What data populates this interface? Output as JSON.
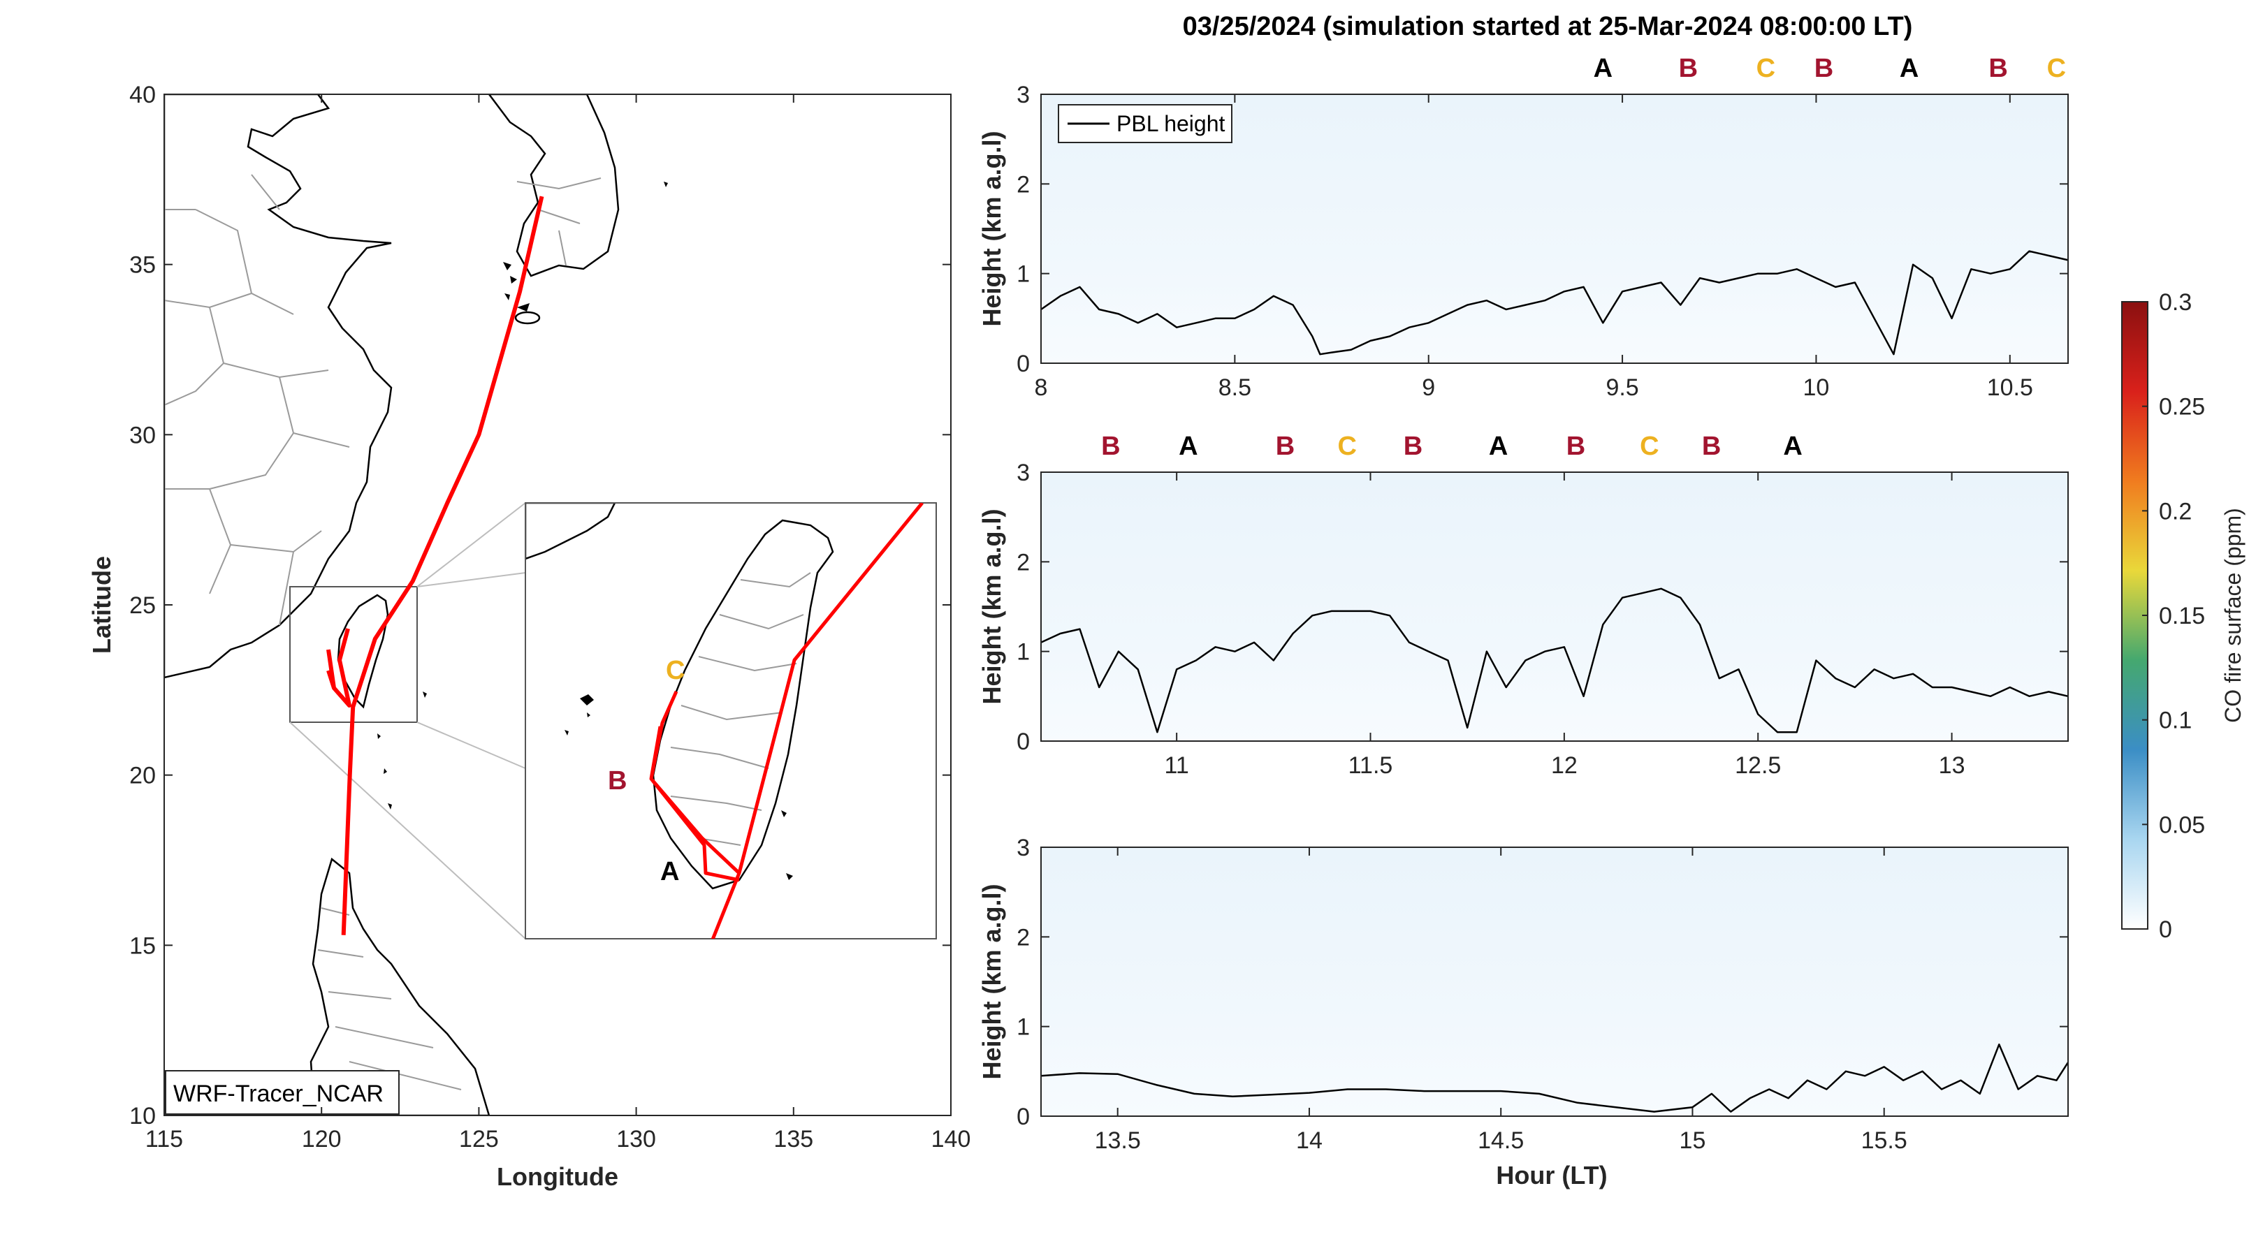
{
  "title": "03/25/2024 (simulation started at 25-Mar-2024 08:00:00 LT)",
  "colors": {
    "A": "#000000",
    "B": "#a2142f",
    "C": "#edb120",
    "track": "#ff0000",
    "pbl": "#000000"
  },
  "chart_data": [
    {
      "type": "map",
      "xlabel": "Longitude",
      "ylabel": "Latitude",
      "xlim": [
        115,
        140
      ],
      "ylim": [
        10,
        40
      ],
      "xticks": [
        "115",
        "120",
        "125",
        "130",
        "135",
        "140"
      ],
      "yticks": [
        "10",
        "15",
        "20",
        "25",
        "30",
        "35",
        "40"
      ],
      "model_label": "WRF-Tracer_NCAR",
      "flight_track": [
        [
          127.0,
          37.0
        ],
        [
          126.3,
          34.2
        ],
        [
          125.0,
          30.0
        ],
        [
          124.0,
          28.0
        ],
        [
          122.9,
          25.7
        ],
        [
          121.7,
          24.0
        ],
        [
          121.0,
          22.0
        ],
        [
          120.9,
          20.0
        ],
        [
          120.7,
          15.3
        ]
      ],
      "inset": {
        "lon": [
          119.0,
          122.5
        ],
        "lat": [
          21.5,
          25.6
        ],
        "waypoints": [
          {
            "label": "A",
            "lon": 120.6,
            "lat": 21.95
          },
          {
            "label": "B",
            "lon": 119.95,
            "lat": 23.1
          },
          {
            "label": "C",
            "lon": 120.3,
            "lat": 23.95
          }
        ]
      }
    },
    {
      "type": "heatmap",
      "ylabel": "Height (km a.g.l)",
      "xlim": [
        8.0,
        10.65
      ],
      "ylim": [
        0,
        3
      ],
      "xticks": [
        "8",
        "8.5",
        "9",
        "9.5",
        "10",
        "10.5"
      ],
      "yticks": [
        "0",
        "1",
        "2",
        "3"
      ],
      "legend": "PBL height",
      "markers": [
        {
          "label": "A",
          "x": 9.45
        },
        {
          "label": "B",
          "x": 9.67
        },
        {
          "label": "C",
          "x": 9.87
        },
        {
          "label": "B",
          "x": 10.02
        },
        {
          "label": "A",
          "x": 10.24
        },
        {
          "label": "B",
          "x": 10.47
        },
        {
          "label": "C",
          "x": 10.62
        }
      ],
      "pbl_x": [
        8.0,
        8.05,
        8.1,
        8.15,
        8.2,
        8.25,
        8.3,
        8.35,
        8.4,
        8.45,
        8.5,
        8.55,
        8.6,
        8.65,
        8.7,
        8.72,
        8.75,
        8.8,
        8.85,
        8.9,
        8.95,
        9.0,
        9.05,
        9.1,
        9.15,
        9.2,
        9.25,
        9.3,
        9.35,
        9.4,
        9.45,
        9.5,
        9.55,
        9.6,
        9.65,
        9.7,
        9.75,
        9.8,
        9.85,
        9.9,
        9.95,
        10.0,
        10.05,
        10.1,
        10.15,
        10.2,
        10.25,
        10.3,
        10.35,
        10.4,
        10.45,
        10.5,
        10.55,
        10.6,
        10.65
      ],
      "pbl_y": [
        0.6,
        0.75,
        0.85,
        0.6,
        0.55,
        0.45,
        0.55,
        0.4,
        0.45,
        0.5,
        0.5,
        0.6,
        0.75,
        0.65,
        0.3,
        0.1,
        0.12,
        0.15,
        0.25,
        0.3,
        0.4,
        0.45,
        0.55,
        0.65,
        0.7,
        0.6,
        0.65,
        0.7,
        0.8,
        0.85,
        0.45,
        0.8,
        0.85,
        0.9,
        0.65,
        0.95,
        0.9,
        0.95,
        1.0,
        1.0,
        1.05,
        0.95,
        0.85,
        0.9,
        0.5,
        0.1,
        1.1,
        0.95,
        0.5,
        1.05,
        1.0,
        1.05,
        1.25,
        1.2,
        1.15
      ]
    },
    {
      "type": "heatmap",
      "ylabel": "Height (km a.g.l)",
      "xlim": [
        10.65,
        13.3
      ],
      "ylim": [
        0,
        3
      ],
      "xticks": [
        "11",
        "11.5",
        "12",
        "12.5",
        "13"
      ],
      "yticks": [
        "0",
        "1",
        "2",
        "3"
      ],
      "markers": [
        {
          "label": "B",
          "x": 10.83
        },
        {
          "label": "A",
          "x": 11.03
        },
        {
          "label": "B",
          "x": 11.28
        },
        {
          "label": "C",
          "x": 11.44
        },
        {
          "label": "B",
          "x": 11.61
        },
        {
          "label": "A",
          "x": 11.83
        },
        {
          "label": "B",
          "x": 12.03
        },
        {
          "label": "C",
          "x": 12.22
        },
        {
          "label": "B",
          "x": 12.38
        },
        {
          "label": "A",
          "x": 12.59
        }
      ],
      "pbl_x": [
        10.65,
        10.7,
        10.75,
        10.8,
        10.85,
        10.9,
        10.95,
        11.0,
        11.05,
        11.1,
        11.15,
        11.2,
        11.25,
        11.3,
        11.35,
        11.4,
        11.45,
        11.5,
        11.55,
        11.6,
        11.65,
        11.7,
        11.75,
        11.8,
        11.85,
        11.9,
        11.95,
        12.0,
        12.05,
        12.1,
        12.15,
        12.2,
        12.25,
        12.3,
        12.35,
        12.4,
        12.45,
        12.5,
        12.55,
        12.6,
        12.65,
        12.7,
        12.75,
        12.8,
        12.85,
        12.9,
        12.95,
        13.0,
        13.05,
        13.1,
        13.15,
        13.2,
        13.25,
        13.3
      ],
      "pbl_y": [
        1.1,
        1.2,
        1.25,
        0.6,
        1.0,
        0.8,
        0.1,
        0.8,
        0.9,
        1.05,
        1.0,
        1.1,
        0.9,
        1.2,
        1.4,
        1.45,
        1.45,
        1.45,
        1.4,
        1.1,
        1.0,
        0.9,
        0.15,
        1.0,
        0.6,
        0.9,
        1.0,
        1.05,
        0.5,
        1.3,
        1.6,
        1.65,
        1.7,
        1.6,
        1.3,
        0.7,
        0.8,
        0.3,
        0.1,
        0.1,
        0.9,
        0.7,
        0.6,
        0.8,
        0.7,
        0.75,
        0.6,
        0.6,
        0.55,
        0.5,
        0.6,
        0.5,
        0.55,
        0.5
      ]
    },
    {
      "type": "heatmap",
      "ylabel": "Height (km a.g.l)",
      "xlabel": "Hour (LT)",
      "xlim": [
        13.3,
        15.98
      ],
      "ylim": [
        0,
        3
      ],
      "xticks": [
        "13.5",
        "14",
        "14.5",
        "15",
        "15.5"
      ],
      "yticks": [
        "0",
        "1",
        "2",
        "3"
      ],
      "pbl_x": [
        13.3,
        13.4,
        13.5,
        13.6,
        13.7,
        13.8,
        13.9,
        14.0,
        14.1,
        14.2,
        14.3,
        14.4,
        14.5,
        14.6,
        14.7,
        14.8,
        14.9,
        15.0,
        15.05,
        15.1,
        15.15,
        15.2,
        15.25,
        15.3,
        15.35,
        15.4,
        15.45,
        15.5,
        15.55,
        15.6,
        15.65,
        15.7,
        15.75,
        15.8,
        15.85,
        15.9,
        15.95,
        15.98
      ],
      "pbl_y": [
        0.45,
        0.48,
        0.47,
        0.35,
        0.25,
        0.22,
        0.24,
        0.26,
        0.3,
        0.3,
        0.28,
        0.28,
        0.28,
        0.25,
        0.15,
        0.1,
        0.05,
        0.1,
        0.25,
        0.05,
        0.2,
        0.3,
        0.2,
        0.4,
        0.3,
        0.5,
        0.45,
        0.55,
        0.4,
        0.5,
        0.3,
        0.4,
        0.25,
        0.8,
        0.3,
        0.45,
        0.4,
        0.6
      ]
    },
    {
      "type": "colorbar",
      "label": "CO fire surface (ppm)",
      "range": [
        0,
        0.3
      ],
      "ticks": [
        "0",
        "0.05",
        "0.1",
        "0.15",
        "0.2",
        "0.25",
        "0.3"
      ],
      "stops": [
        "#ffffff",
        "#a9d6f0",
        "#3b8ec5",
        "#45a86f",
        "#e9d83a",
        "#f07c1f",
        "#d9211b",
        "#8b1010"
      ]
    }
  ]
}
